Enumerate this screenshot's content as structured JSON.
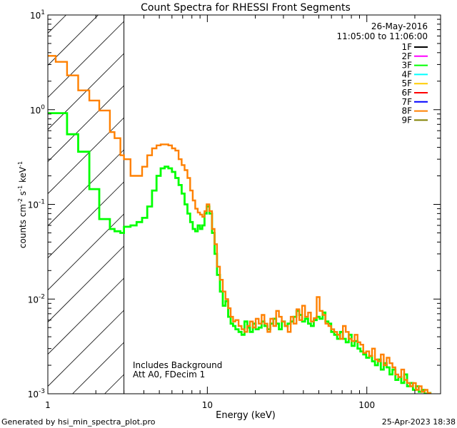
{
  "chart_data": {
    "type": "line",
    "title": "Count Spectra for RHESSI Front Segments",
    "xlabel": "Energy (keV)",
    "ylabel_base": "counts cm",
    "ylabel_exp1": "-2",
    "ylabel_mid": " s",
    "ylabel_exp2": "-1",
    "ylabel_end": " keV",
    "ylabel_exp3": "-1",
    "x_scale": "log",
    "y_scale": "log",
    "xlim": [
      1,
      290
    ],
    "ylim": [
      0.001,
      10
    ],
    "x_ticks": [
      {
        "v": 1,
        "label": "1"
      },
      {
        "v": 10,
        "label": "10"
      },
      {
        "v": 100,
        "label": "100"
      }
    ],
    "y_ticks": [
      {
        "v": 0.001,
        "base": "10",
        "exp": "-3"
      },
      {
        "v": 0.01,
        "base": "10",
        "exp": "-2"
      },
      {
        "v": 0.1,
        "base": "10",
        "exp": "-1"
      },
      {
        "v": 1,
        "base": "10",
        "exp": "0"
      },
      {
        "v": 10,
        "base": "10",
        "exp": "1"
      }
    ],
    "shaded_region": {
      "x_from": 1,
      "x_to": 3
    },
    "date": "26-May-2016",
    "time_range": "11:05:00 to 11:06:00",
    "legend_position": "top-right",
    "legend": [
      {
        "label": "1F",
        "color": "#000000"
      },
      {
        "label": "2F",
        "color": "#ff00ff"
      },
      {
        "label": "3F",
        "color": "#00ff00"
      },
      {
        "label": "4F",
        "color": "#00ffff"
      },
      {
        "label": "5F",
        "color": "#ffcc00"
      },
      {
        "label": "6F",
        "color": "#ff0000"
      },
      {
        "label": "7F",
        "color": "#0000ff"
      },
      {
        "label": "8F",
        "color": "#ff8000"
      },
      {
        "label": "9F",
        "color": "#808000"
      }
    ],
    "annotations": [
      "Includes Background",
      "Att A0, FDecim 1"
    ],
    "series": [
      {
        "name": "8F",
        "color": "#ff8000",
        "points": [
          [
            1.12,
            3.7
          ],
          [
            1.32,
            3.2
          ],
          [
            1.55,
            2.3
          ],
          [
            1.82,
            1.6
          ],
          [
            2.1,
            1.25
          ],
          [
            2.45,
            0.98
          ],
          [
            2.62,
            0.58
          ],
          [
            2.85,
            0.5
          ],
          [
            3.0,
            0.33
          ],
          [
            3.3,
            0.3
          ],
          [
            3.6,
            0.2
          ],
          [
            3.9,
            0.2
          ],
          [
            4.2,
            0.25
          ],
          [
            4.5,
            0.33
          ],
          [
            4.8,
            0.39
          ],
          [
            5.1,
            0.42
          ],
          [
            5.4,
            0.43
          ],
          [
            5.7,
            0.43
          ],
          [
            6.0,
            0.42
          ],
          [
            6.3,
            0.39
          ],
          [
            6.6,
            0.37
          ],
          [
            6.9,
            0.3
          ],
          [
            7.2,
            0.26
          ],
          [
            7.5,
            0.23
          ],
          [
            7.8,
            0.19
          ],
          [
            8.1,
            0.14
          ],
          [
            8.4,
            0.11
          ],
          [
            8.7,
            0.09
          ],
          [
            9.0,
            0.082
          ],
          [
            9.3,
            0.078
          ],
          [
            9.6,
            0.074
          ],
          [
            9.9,
            0.085
          ],
          [
            10.3,
            0.1
          ],
          [
            10.7,
            0.085
          ],
          [
            11.1,
            0.055
          ],
          [
            11.5,
            0.038
          ],
          [
            12.0,
            0.022
          ],
          [
            12.5,
            0.016
          ],
          [
            13,
            0.012
          ],
          [
            13.5,
            0.01
          ],
          [
            14,
            0.008
          ],
          [
            14.5,
            0.0065
          ],
          [
            15,
            0.0058
          ],
          [
            15.7,
            0.006
          ],
          [
            16.4,
            0.0052
          ],
          [
            17.1,
            0.0048
          ],
          [
            17.8,
            0.0045
          ],
          [
            18.5,
            0.0052
          ],
          [
            19.3,
            0.0058
          ],
          [
            20.1,
            0.005
          ],
          [
            21,
            0.0062
          ],
          [
            21.9,
            0.0055
          ],
          [
            22.8,
            0.0068
          ],
          [
            23.8,
            0.0055
          ],
          [
            24.8,
            0.0045
          ],
          [
            25.9,
            0.0062
          ],
          [
            27,
            0.0052
          ],
          [
            28.1,
            0.0075
          ],
          [
            29.3,
            0.0065
          ],
          [
            30.6,
            0.0058
          ],
          [
            31.9,
            0.0052
          ],
          [
            33.3,
            0.0045
          ],
          [
            34.7,
            0.0065
          ],
          [
            36.2,
            0.0055
          ],
          [
            37.7,
            0.0078
          ],
          [
            39.3,
            0.006
          ],
          [
            41,
            0.0085
          ],
          [
            42.8,
            0.0065
          ],
          [
            44.6,
            0.0072
          ],
          [
            46.5,
            0.0058
          ],
          [
            48.5,
            0.0063
          ],
          [
            50.6,
            0.0105
          ],
          [
            52.8,
            0.0075
          ],
          [
            55,
            0.0068
          ],
          [
            57.4,
            0.0055
          ],
          [
            59.8,
            0.0052
          ],
          [
            62.4,
            0.0048
          ],
          [
            65.1,
            0.0045
          ],
          [
            67.9,
            0.0042
          ],
          [
            70.8,
            0.0038
          ],
          [
            73.8,
            0.0052
          ],
          [
            77,
            0.0045
          ],
          [
            80.3,
            0.0038
          ],
          [
            83.8,
            0.0036
          ],
          [
            87.4,
            0.0042
          ],
          [
            91.1,
            0.0035
          ],
          [
            95,
            0.0033
          ],
          [
            99.1,
            0.0027
          ],
          [
            103.4,
            0.0028
          ],
          [
            107.8,
            0.0025
          ],
          [
            112.5,
            0.003
          ],
          [
            117.3,
            0.0023
          ],
          [
            122.4,
            0.0022
          ],
          [
            127.6,
            0.0026
          ],
          [
            133.1,
            0.002
          ],
          [
            138.8,
            0.0024
          ],
          [
            144.8,
            0.0021
          ],
          [
            151,
            0.0019
          ],
          [
            157.5,
            0.0016
          ],
          [
            164.3,
            0.0015
          ],
          [
            171.4,
            0.0018
          ],
          [
            178.8,
            0.0014
          ],
          [
            186.5,
            0.0013
          ],
          [
            194.5,
            0.0012
          ],
          [
            202.9,
            0.0013
          ],
          [
            211.6,
            0.0011
          ],
          [
            220.7,
            0.0012
          ],
          [
            230.2,
            0.00105
          ],
          [
            240.1,
            0.0011
          ],
          [
            250.4,
            0.00102
          ],
          [
            261.2,
            0.00098
          ],
          [
            272.5,
            0.00098
          ],
          [
            284.2,
            0.00098
          ]
        ]
      },
      {
        "name": "3F",
        "color": "#00ff00",
        "points": [
          [
            1.12,
            0.92
          ],
          [
            1.32,
            0.92
          ],
          [
            1.55,
            0.55
          ],
          [
            1.82,
            0.36
          ],
          [
            2.1,
            0.145
          ],
          [
            2.45,
            0.07
          ],
          [
            2.62,
            0.055
          ],
          [
            2.85,
            0.052
          ],
          [
            3.0,
            0.05
          ],
          [
            3.3,
            0.058
          ],
          [
            3.6,
            0.06
          ],
          [
            3.9,
            0.065
          ],
          [
            4.2,
            0.072
          ],
          [
            4.5,
            0.095
          ],
          [
            4.8,
            0.14
          ],
          [
            5.1,
            0.2
          ],
          [
            5.4,
            0.24
          ],
          [
            5.7,
            0.25
          ],
          [
            6.0,
            0.24
          ],
          [
            6.3,
            0.22
          ],
          [
            6.6,
            0.19
          ],
          [
            6.9,
            0.16
          ],
          [
            7.2,
            0.13
          ],
          [
            7.5,
            0.1
          ],
          [
            7.8,
            0.08
          ],
          [
            8.1,
            0.065
          ],
          [
            8.4,
            0.055
          ],
          [
            8.7,
            0.052
          ],
          [
            9.0,
            0.06
          ],
          [
            9.3,
            0.055
          ],
          [
            9.6,
            0.06
          ],
          [
            9.9,
            0.08
          ],
          [
            10.3,
            0.095
          ],
          [
            10.7,
            0.08
          ],
          [
            11.1,
            0.05
          ],
          [
            11.5,
            0.03
          ],
          [
            12.0,
            0.018
          ],
          [
            12.5,
            0.012
          ],
          [
            13,
            0.0085
          ],
          [
            13.5,
            0.0095
          ],
          [
            14,
            0.0065
          ],
          [
            14.5,
            0.0055
          ],
          [
            15,
            0.0052
          ],
          [
            15.7,
            0.0048
          ],
          [
            16.4,
            0.0045
          ],
          [
            17.1,
            0.0042
          ],
          [
            17.8,
            0.0058
          ],
          [
            18.5,
            0.005
          ],
          [
            19.3,
            0.0045
          ],
          [
            20.1,
            0.0055
          ],
          [
            21,
            0.0048
          ],
          [
            21.9,
            0.005
          ],
          [
            22.8,
            0.0058
          ],
          [
            23.8,
            0.0052
          ],
          [
            24.8,
            0.0048
          ],
          [
            25.9,
            0.0055
          ],
          [
            27,
            0.0062
          ],
          [
            28.1,
            0.0055
          ],
          [
            29.3,
            0.0048
          ],
          [
            30.6,
            0.0058
          ],
          [
            31.9,
            0.0052
          ],
          [
            33.3,
            0.0055
          ],
          [
            34.7,
            0.0058
          ],
          [
            36.2,
            0.0065
          ],
          [
            37.7,
            0.0075
          ],
          [
            39.3,
            0.0068
          ],
          [
            41,
            0.0058
          ],
          [
            42.8,
            0.0062
          ],
          [
            44.6,
            0.0055
          ],
          [
            46.5,
            0.0052
          ],
          [
            48.5,
            0.006
          ],
          [
            50.6,
            0.0065
          ],
          [
            52.8,
            0.0062
          ],
          [
            55,
            0.0072
          ],
          [
            57.4,
            0.0058
          ],
          [
            59.8,
            0.0055
          ],
          [
            62.4,
            0.0045
          ],
          [
            65.1,
            0.0042
          ],
          [
            67.9,
            0.0038
          ],
          [
            70.8,
            0.0045
          ],
          [
            73.8,
            0.0038
          ],
          [
            77,
            0.0035
          ],
          [
            80.3,
            0.0042
          ],
          [
            83.8,
            0.0032
          ],
          [
            87.4,
            0.0036
          ],
          [
            91.1,
            0.003
          ],
          [
            95,
            0.0028
          ],
          [
            99.1,
            0.0026
          ],
          [
            103.4,
            0.0024
          ],
          [
            107.8,
            0.0025
          ],
          [
            112.5,
            0.0022
          ],
          [
            117.3,
            0.002
          ],
          [
            122.4,
            0.0023
          ],
          [
            127.6,
            0.0018
          ],
          [
            133.1,
            0.0021
          ],
          [
            138.8,
            0.0019
          ],
          [
            144.8,
            0.0016
          ],
          [
            151,
            0.0018
          ],
          [
            157.5,
            0.0014
          ],
          [
            164.3,
            0.0015
          ],
          [
            171.4,
            0.0013
          ],
          [
            178.8,
            0.0016
          ],
          [
            186.5,
            0.0012
          ],
          [
            194.5,
            0.0013
          ],
          [
            202.9,
            0.0011
          ],
          [
            211.6,
            0.0012
          ],
          [
            220.7,
            0.00105
          ],
          [
            230.2,
            0.0011
          ],
          [
            240.1,
            0.001
          ],
          [
            250.4,
            0.00102
          ],
          [
            261.2,
            0.00098
          ],
          [
            272.5,
            0.00098
          ],
          [
            284.2,
            0.00098
          ]
        ]
      }
    ]
  },
  "footer": {
    "left": "Generated by hsi_min_spectra_plot.pro",
    "right": "25-Apr-2023 18:38"
  }
}
